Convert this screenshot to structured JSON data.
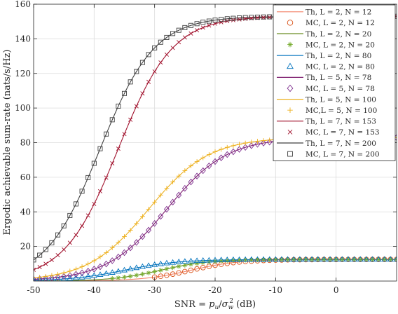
{
  "chart_data": {
    "type": "line",
    "title": "",
    "xlabel": "SNR = p_u/σ_w^2 (dB)",
    "ylabel": "Ergodic achievable sum-rate (nats/s/Hz)",
    "xlim": [
      -50,
      10
    ],
    "ylim": [
      0,
      160
    ],
    "xticks": [
      -50,
      -40,
      -30,
      -20,
      -10,
      0
    ],
    "xtick_labels": [
      "-50",
      "-40",
      "-30",
      "-20",
      "-10",
      "0"
    ],
    "yticks": [
      20,
      40,
      60,
      80,
      100,
      120,
      140,
      160
    ],
    "ytick_labels": [
      "20",
      "40",
      "60",
      "80",
      "100",
      "120",
      "140",
      "160"
    ],
    "grid": true,
    "legend_position": "top-right",
    "mc_step_db": 1,
    "series": [
      {
        "name": "Th, L = 2, N = 12",
        "kind": "line",
        "color": "#f4836a",
        "model": {
          "a": 12.5,
          "c": -24,
          "w": 4
        }
      },
      {
        "name": "MC, L = 2, N = 12",
        "kind": "marker",
        "marker": "circle",
        "color": "#d95319",
        "model": {
          "a": 12.5,
          "c": -24,
          "w": 4
        },
        "x_start": -30
      },
      {
        "name": "Th, L = 2, N = 20",
        "kind": "line",
        "color": "#6b8e23",
        "model": {
          "a": 12.5,
          "c": -29,
          "w": 4
        }
      },
      {
        "name": "MC, L = 2, N = 20",
        "kind": "marker",
        "marker": "star",
        "color": "#77ac30",
        "model": {
          "a": 12.5,
          "c": -29,
          "w": 4
        },
        "x_start": -37
      },
      {
        "name": "Th, L = 2, N = 80",
        "kind": "line",
        "color": "#0072bd",
        "model": {
          "a": 12.5,
          "c": -35,
          "w": 4.5
        }
      },
      {
        "name": "MC, L = 2, N = 80",
        "kind": "marker",
        "marker": "triangle",
        "color": "#0072bd",
        "model": {
          "a": 12.5,
          "c": -35,
          "w": 4.5
        },
        "x_start": -50
      },
      {
        "name": "Th, L = 5, N = 78",
        "kind": "line",
        "color": "#7e1e6e",
        "model": {
          "a": 83,
          "c": -28,
          "w": 5
        }
      },
      {
        "name": "MC, L = 5, N = 78",
        "kind": "marker",
        "marker": "diamond",
        "color": "#7e2f8e",
        "model": {
          "a": 83,
          "c": -28,
          "w": 5
        },
        "x_start": -50
      },
      {
        "name": "Th, L = 5, N = 100",
        "kind": "line",
        "color": "#edb120",
        "model": {
          "a": 83,
          "c": -31,
          "w": 5
        }
      },
      {
        "name": "MC,L = 5, N = 100",
        "kind": "marker",
        "marker": "plus",
        "color": "#edb120",
        "model": {
          "a": 83,
          "c": -31,
          "w": 5
        },
        "x_start": -50
      },
      {
        "name": "Th, L = 7, N = 153",
        "kind": "line",
        "color": "#a2142f",
        "model": {
          "a": 153,
          "c": -36,
          "w": 4.5
        }
      },
      {
        "name": "MC, L = 7, N = 153",
        "kind": "marker",
        "marker": "x",
        "color": "#a2142f",
        "model": {
          "a": 153,
          "c": -36,
          "w": 4.5
        },
        "x_start": -50
      },
      {
        "name": "Th, L = 7, N = 200",
        "kind": "line",
        "color": "#404040",
        "model": {
          "a": 153,
          "c": -39,
          "w": 4.5
        }
      },
      {
        "name": "MC, L = 7, N = 200",
        "kind": "marker",
        "marker": "square",
        "color": "#404040",
        "model": {
          "a": 153,
          "c": -39,
          "w": 4.5
        },
        "x_start": -50
      }
    ]
  }
}
